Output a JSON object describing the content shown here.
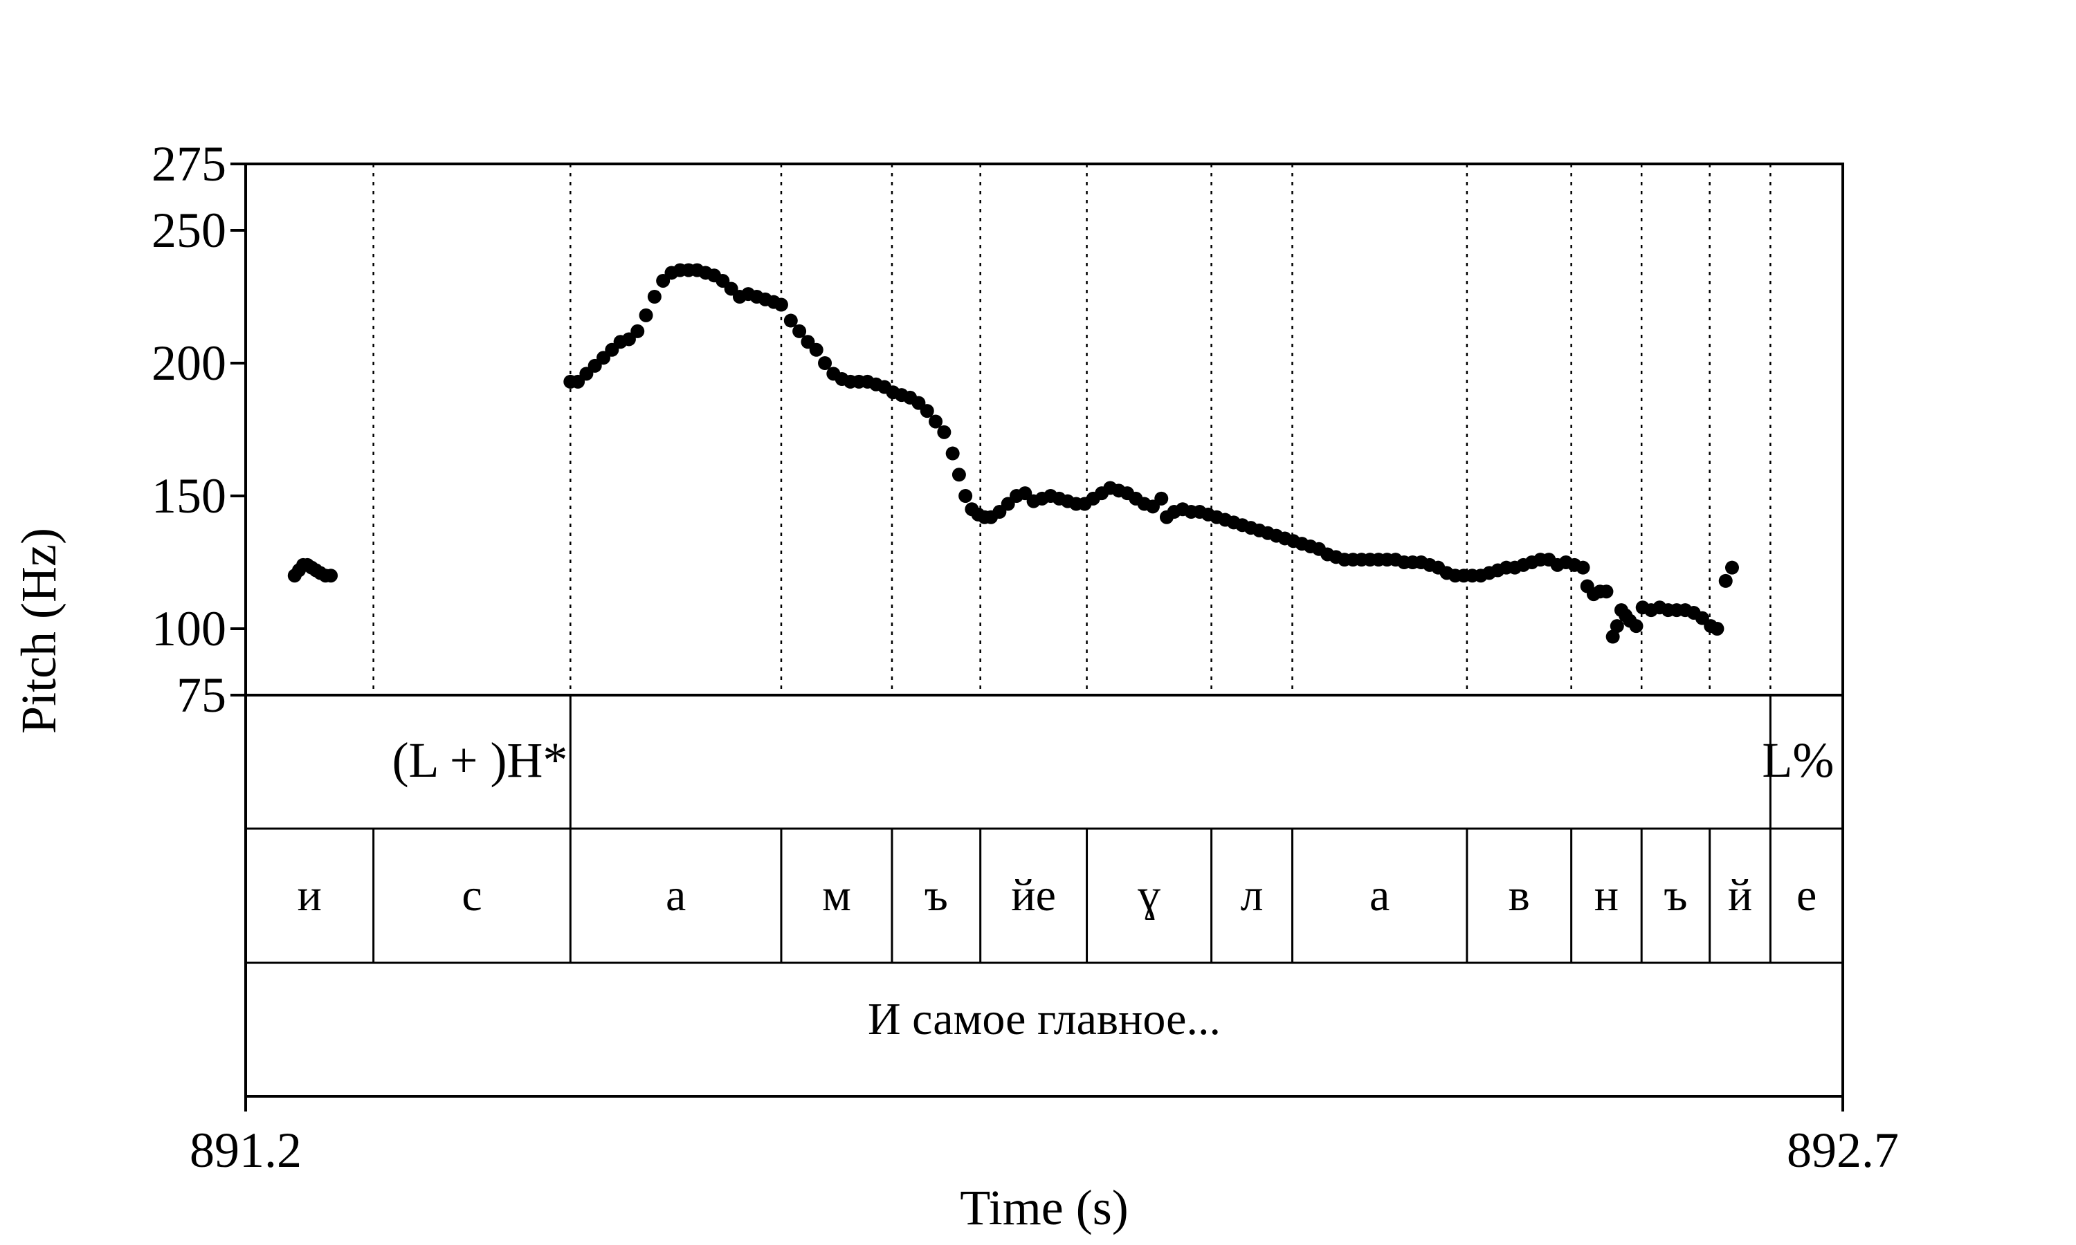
{
  "chart_data": {
    "type": "scatter",
    "title": "",
    "xlabel": "Time (s)",
    "ylabel": "Pitch (Hz)",
    "xlim": [
      891.2,
      892.7
    ],
    "ylim": [
      75,
      275
    ],
    "x_tick_labels": [
      "891.2",
      "892.7"
    ],
    "y_ticks": [
      75,
      100,
      150,
      200,
      250,
      275
    ],
    "boundaries": [
      891.32,
      891.505,
      891.703,
      891.807,
      891.89,
      891.99,
      892.107,
      892.183,
      892.347,
      892.445,
      892.511,
      892.575,
      892.632
    ],
    "tone_tier": {
      "boundaries": [
        891.505,
        892.632
      ],
      "labels": [
        {
          "text": "(L + )H*",
          "x": 891.42
        },
        {
          "text": "L%",
          "x": 892.658
        }
      ]
    },
    "segments": [
      {
        "text": "и",
        "start": 891.2,
        "end": 891.32
      },
      {
        "text": "с",
        "start": 891.32,
        "end": 891.505
      },
      {
        "text": "а",
        "start": 891.505,
        "end": 891.703
      },
      {
        "text": "м",
        "start": 891.703,
        "end": 891.807
      },
      {
        "text": "ъ",
        "start": 891.807,
        "end": 891.89
      },
      {
        "text": "йе",
        "start": 891.89,
        "end": 891.99
      },
      {
        "text": "ɣ",
        "start": 891.99,
        "end": 892.107
      },
      {
        "text": "л",
        "start": 892.107,
        "end": 892.183
      },
      {
        "text": "а",
        "start": 892.183,
        "end": 892.347
      },
      {
        "text": "в",
        "start": 892.347,
        "end": 892.445
      },
      {
        "text": "н",
        "start": 892.445,
        "end": 892.511
      },
      {
        "text": "ъ",
        "start": 892.511,
        "end": 892.575
      },
      {
        "text": "й",
        "start": 892.575,
        "end": 892.632
      },
      {
        "text": "е",
        "start": 892.632,
        "end": 892.7
      }
    ],
    "sentence": "И самое главное...",
    "series": [
      {
        "points": [
          [
            891.246,
            120
          ],
          [
            891.25,
            122
          ],
          [
            891.254,
            124
          ],
          [
            891.258,
            124
          ],
          [
            891.262,
            123
          ],
          [
            891.266,
            122
          ],
          [
            891.27,
            121
          ],
          [
            891.275,
            120
          ],
          [
            891.28,
            120
          ],
          [
            891.505,
            193
          ],
          [
            891.512,
            193
          ],
          [
            891.52,
            196
          ],
          [
            891.528,
            199
          ],
          [
            891.536,
            202
          ],
          [
            891.544,
            205
          ],
          [
            891.552,
            208
          ],
          [
            891.56,
            209
          ],
          [
            891.568,
            212
          ],
          [
            891.576,
            218
          ],
          [
            891.584,
            225
          ],
          [
            891.592,
            231
          ],
          [
            891.6,
            234
          ],
          [
            891.608,
            235
          ],
          [
            891.616,
            235
          ],
          [
            891.624,
            235
          ],
          [
            891.632,
            234
          ],
          [
            891.64,
            233
          ],
          [
            891.648,
            231
          ],
          [
            891.656,
            228
          ],
          [
            891.664,
            225
          ],
          [
            891.672,
            226
          ],
          [
            891.68,
            225
          ],
          [
            891.688,
            224
          ],
          [
            891.696,
            223
          ],
          [
            891.703,
            222
          ],
          [
            891.712,
            216
          ],
          [
            891.72,
            212
          ],
          [
            891.728,
            208
          ],
          [
            891.736,
            205
          ],
          [
            891.744,
            200
          ],
          [
            891.752,
            196
          ],
          [
            891.76,
            194
          ],
          [
            891.768,
            193
          ],
          [
            891.776,
            193
          ],
          [
            891.784,
            193
          ],
          [
            891.792,
            192
          ],
          [
            891.8,
            191
          ],
          [
            891.808,
            189
          ],
          [
            891.816,
            188
          ],
          [
            891.824,
            187
          ],
          [
            891.832,
            185
          ],
          [
            891.84,
            182
          ],
          [
            891.848,
            178
          ],
          [
            891.856,
            174
          ],
          [
            891.864,
            166
          ],
          [
            891.87,
            158
          ],
          [
            891.876,
            150
          ],
          [
            891.882,
            145
          ],
          [
            891.888,
            143
          ],
          [
            891.894,
            142
          ],
          [
            891.9,
            142
          ],
          [
            891.908,
            144
          ],
          [
            891.916,
            147
          ],
          [
            891.924,
            150
          ],
          [
            891.932,
            151
          ],
          [
            891.94,
            148
          ],
          [
            891.948,
            149
          ],
          [
            891.956,
            150
          ],
          [
            891.964,
            149
          ],
          [
            891.972,
            148
          ],
          [
            891.98,
            147
          ],
          [
            891.988,
            147
          ],
          [
            891.996,
            149
          ],
          [
            892.004,
            151
          ],
          [
            892.012,
            153
          ],
          [
            892.02,
            152
          ],
          [
            892.028,
            151
          ],
          [
            892.036,
            149
          ],
          [
            892.044,
            147
          ],
          [
            892.052,
            146
          ],
          [
            892.06,
            149
          ],
          [
            892.065,
            142
          ],
          [
            892.072,
            144
          ],
          [
            892.08,
            145
          ],
          [
            892.088,
            144
          ],
          [
            892.096,
            144
          ],
          [
            892.104,
            143
          ],
          [
            892.112,
            142
          ],
          [
            892.12,
            141
          ],
          [
            892.128,
            140
          ],
          [
            892.136,
            139
          ],
          [
            892.144,
            138
          ],
          [
            892.152,
            137
          ],
          [
            892.16,
            136
          ],
          [
            892.168,
            135
          ],
          [
            892.176,
            134
          ],
          [
            892.184,
            133
          ],
          [
            892.192,
            132
          ],
          [
            892.2,
            131
          ],
          [
            892.208,
            130
          ],
          [
            892.216,
            128
          ],
          [
            892.224,
            127
          ],
          [
            892.232,
            126
          ],
          [
            892.24,
            126
          ],
          [
            892.248,
            126
          ],
          [
            892.256,
            126
          ],
          [
            892.264,
            126
          ],
          [
            892.272,
            126
          ],
          [
            892.28,
            126
          ],
          [
            892.288,
            125
          ],
          [
            892.296,
            125
          ],
          [
            892.304,
            125
          ],
          [
            892.312,
            124
          ],
          [
            892.32,
            123
          ],
          [
            892.328,
            121
          ],
          [
            892.336,
            120
          ],
          [
            892.344,
            120
          ],
          [
            892.352,
            120
          ],
          [
            892.36,
            120
          ],
          [
            892.368,
            121
          ],
          [
            892.376,
            122
          ],
          [
            892.384,
            123
          ],
          [
            892.392,
            123
          ],
          [
            892.4,
            124
          ],
          [
            892.408,
            125
          ],
          [
            892.416,
            126
          ],
          [
            892.424,
            126
          ],
          [
            892.432,
            124
          ],
          [
            892.44,
            125
          ],
          [
            892.448,
            124
          ],
          [
            892.456,
            123
          ],
          [
            892.46,
            116
          ],
          [
            892.466,
            113
          ],
          [
            892.472,
            114
          ],
          [
            892.478,
            114
          ],
          [
            892.484,
            97
          ],
          [
            892.488,
            101
          ],
          [
            892.492,
            107
          ],
          [
            892.496,
            105
          ],
          [
            892.5,
            103
          ],
          [
            892.506,
            101
          ],
          [
            892.512,
            108
          ],
          [
            892.52,
            107
          ],
          [
            892.528,
            108
          ],
          [
            892.536,
            107
          ],
          [
            892.544,
            107
          ],
          [
            892.552,
            107
          ],
          [
            892.56,
            106
          ],
          [
            892.568,
            104
          ],
          [
            892.576,
            101
          ],
          [
            892.582,
            100
          ],
          [
            892.59,
            118
          ],
          [
            892.596,
            123
          ]
        ]
      }
    ]
  }
}
